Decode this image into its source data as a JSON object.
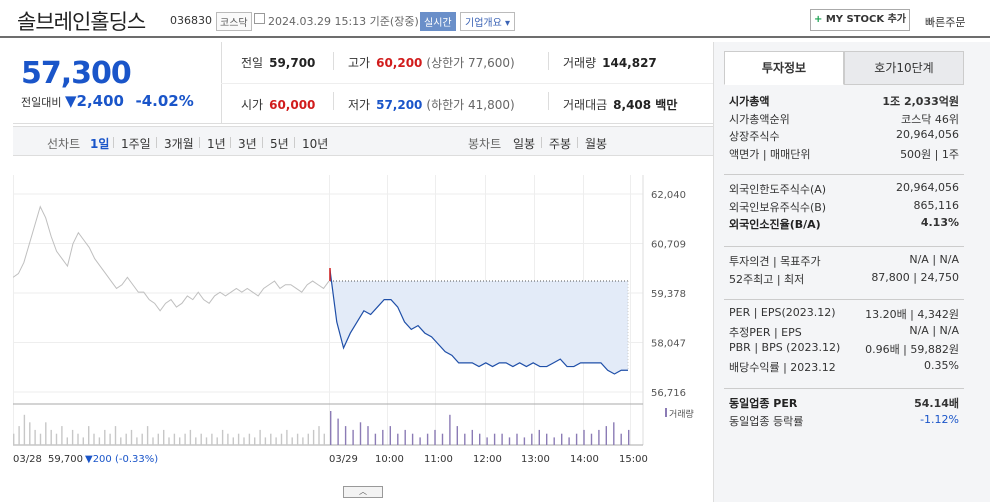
{
  "header": {
    "name": "솔브레인홀딩스",
    "code": "036830",
    "market_tag": "코스닥",
    "date": "2024.03.29 15:13 기준(장중)",
    "live": "실시간",
    "corp": "기업개요",
    "mystock_plus": "+",
    "mystock": "MY STOCK 추가",
    "quick_order": "빠른주문"
  },
  "quote": {
    "price": "57,300",
    "change_label": "전일대비",
    "change_amount": "2,400",
    "change_pct": "-4.02%",
    "prev_close_label": "전일",
    "prev_close": "59,700",
    "open_label": "시가",
    "open": "60,000",
    "high_label": "고가",
    "high": "60,200",
    "upper_limit": "(상한가 77,600)",
    "low_label": "저가",
    "low": "57,200",
    "lower_limit": "(하한가 41,800)",
    "volume_label": "거래량",
    "volume": "144,827",
    "amount_label": "거래대금",
    "amount": "8,408 백만"
  },
  "period_bar": {
    "line_title": "선차트",
    "line_opts": [
      "1일",
      "1주일",
      "3개월",
      "1년",
      "3년",
      "5년",
      "10년"
    ],
    "candle_title": "봉차트",
    "candle_opts": [
      "일봉",
      "주봉",
      "월봉"
    ]
  },
  "chart_data": {
    "type": "line",
    "y_ticks": [
      "62,040",
      "60,709",
      "59,378",
      "58,047",
      "56,716"
    ],
    "ylim": [
      56716,
      62040
    ],
    "prev_close": 59700,
    "x_ticks": [
      "03/28",
      "03/29",
      "10:00",
      "11:00",
      "12:00",
      "13:00",
      "14:00",
      "15:00"
    ],
    "volume_legend": "거래량",
    "prev_day_caption": {
      "date": "03/28",
      "price": "59,700",
      "change": "▼200 (-0.33%)"
    },
    "series": [
      {
        "name": "03/28",
        "values": [
          59800,
          59900,
          60200,
          60700,
          61200,
          61700,
          61400,
          60900,
          60500,
          60300,
          60100,
          60700,
          61000,
          60800,
          60600,
          60300,
          60100,
          59900,
          59700,
          59500,
          59600,
          59800,
          59600,
          59400,
          59400,
          59200,
          59100,
          58900,
          59100,
          59200,
          59000,
          59100,
          59300,
          59200,
          59400,
          59200,
          59100,
          59300,
          59400,
          59300,
          59400,
          59500,
          59400,
          59500,
          59400,
          59300,
          59500,
          59600,
          59700,
          59500,
          59600,
          59600,
          59500,
          59400,
          59600,
          59700,
          59600,
          59500,
          59700
        ]
      },
      {
        "name": "03/29",
        "values": [
          60000,
          58600,
          57900,
          58300,
          58600,
          58900,
          58800,
          59000,
          59200,
          59200,
          59000,
          58600,
          58400,
          58500,
          58300,
          58200,
          58000,
          57800,
          57700,
          57500,
          57500,
          57500,
          57400,
          57500,
          57400,
          57500,
          57500,
          57400,
          57500,
          57400,
          57500,
          57400,
          57400,
          57500,
          57600,
          57400,
          57400,
          57500,
          57500,
          57500,
          57500,
          57300,
          57200,
          57300,
          57300
        ]
      }
    ],
    "volume": [
      3,
      5,
      8,
      6,
      4,
      3,
      6,
      4,
      3,
      5,
      2,
      4,
      3,
      2,
      5,
      3,
      2,
      4,
      3,
      5,
      2,
      3,
      4,
      2,
      3,
      5,
      2,
      3,
      4,
      2,
      3,
      2,
      3,
      4,
      2,
      3,
      2,
      3,
      2,
      4,
      3,
      2,
      3,
      2,
      3,
      2,
      4,
      2,
      3,
      2,
      3,
      4,
      2,
      3,
      2,
      3,
      4,
      5,
      3,
      9,
      7,
      5,
      4,
      6,
      5,
      3,
      4,
      5,
      3,
      4,
      3,
      2,
      3,
      4,
      3,
      8,
      5,
      3,
      4,
      3,
      2,
      3,
      3,
      2,
      3,
      2,
      3,
      4,
      3,
      2,
      3,
      2,
      3,
      4,
      3,
      4,
      5,
      6,
      3,
      4
    ]
  },
  "tabs": [
    "투자정보",
    "호가10단계"
  ],
  "info": {
    "g1": [
      {
        "k": "시가총액",
        "v": "1조 2,033억원",
        "kb": true,
        "vb": true
      },
      {
        "k": "시가총액순위",
        "v": "코스닥 46위"
      },
      {
        "k": "상장주식수",
        "v": "20,964,056"
      },
      {
        "k": "액면가 | 매매단위",
        "v": "500원 | 1주"
      }
    ],
    "g2": [
      {
        "k": "외국인한도주식수(A)",
        "v": "20,964,056"
      },
      {
        "k": "외국인보유주식수(B)",
        "v": "865,116"
      },
      {
        "k": "외국인소진율(B/A)",
        "v": "4.13%",
        "kb": true,
        "vb": true
      }
    ],
    "g3": [
      {
        "k": "투자의견 | 목표주가",
        "v": "N/A | N/A"
      },
      {
        "k": "52주최고 | 최저",
        "v": "87,800 | 24,750"
      }
    ],
    "g4": [
      {
        "k": "PER | EPS(2023.12)",
        "v": "13.20배 | 4,342원"
      },
      {
        "k": "추정PER | EPS",
        "v": "N/A | N/A"
      },
      {
        "k": "PBR | BPS (2023.12)",
        "v": "0.96배 | 59,882원"
      },
      {
        "k": "배당수익률 | 2023.12",
        "v": "0.35%"
      }
    ],
    "g5": [
      {
        "k": "동일업종 PER",
        "v": "54.14배",
        "kb": true,
        "vb": true
      },
      {
        "k": "동일업종 등락률",
        "v": "-1.12%",
        "vdn": true
      }
    ]
  },
  "colors": {
    "up": "#d11c1c",
    "down": "#1a55c9",
    "line_today": "#1f4fa8",
    "fill_today": "#e3ebf8",
    "line_prev": "#bfbfbf",
    "volume": "#8b7bb5"
  }
}
